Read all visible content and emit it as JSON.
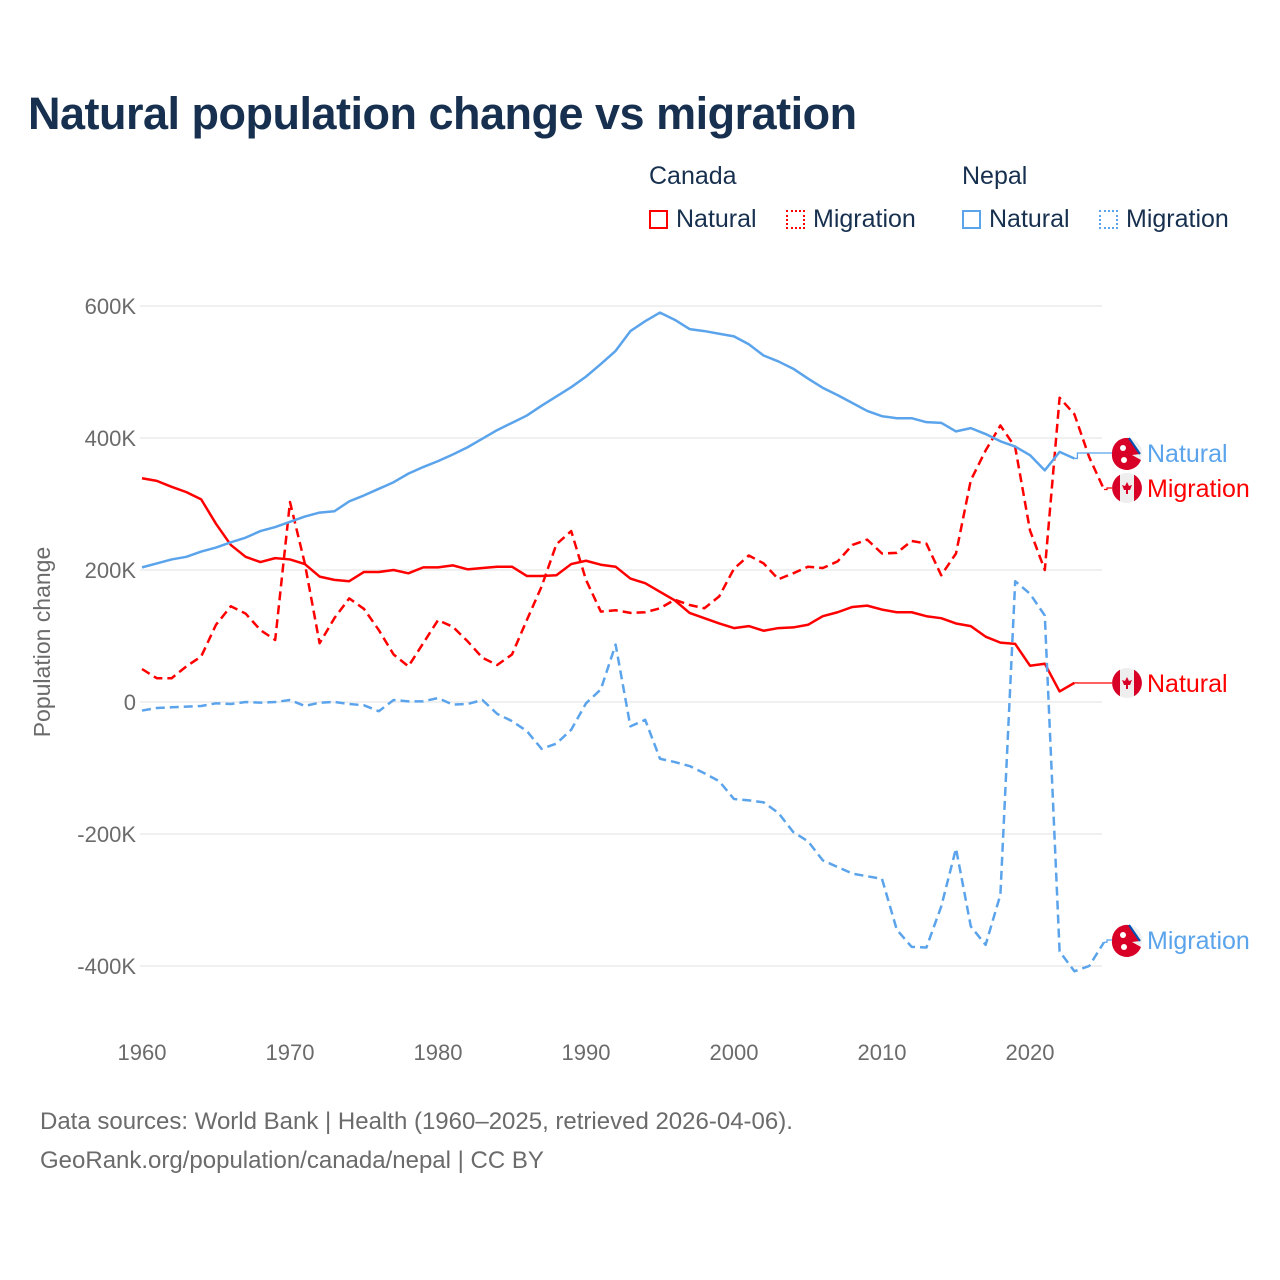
{
  "title": "Natural population change vs migration",
  "legend": {
    "groups": [
      {
        "name": "Canada",
        "items": [
          {
            "label": "Natural",
            "style": "solid"
          },
          {
            "label": "Migration",
            "style": "dotted"
          }
        ],
        "color": "#ff0000"
      },
      {
        "name": "Nepal",
        "items": [
          {
            "label": "Natural",
            "style": "solid"
          },
          {
            "label": "Migration",
            "style": "dotted"
          }
        ],
        "color": "#5ba4ec"
      }
    ]
  },
  "footer": {
    "line1": "Data sources: World Bank | Health (1960–2025, retrieved 2026-04-06).",
    "line2": "GeoRank.org/population/canada/nepal | CC BY"
  },
  "chart_data": {
    "type": "line",
    "title": "Natural population change vs migration",
    "xlabel": "",
    "ylabel": "Population change",
    "xlim": [
      1960,
      2025
    ],
    "ylim": [
      -400000,
      600000
    ],
    "x_ticks": [
      "1960",
      "1970",
      "1980",
      "1990",
      "2000",
      "2010",
      "2020"
    ],
    "y_ticks": [
      {
        "value": 600000,
        "label": "600K"
      },
      {
        "value": 400000,
        "label": "400K"
      },
      {
        "value": 200000,
        "label": "200K"
      },
      {
        "value": 0,
        "label": "0"
      },
      {
        "value": -200000,
        "label": "-200K"
      },
      {
        "value": -400000,
        "label": "-400K"
      }
    ],
    "grid": true,
    "legend_position": "top-right",
    "series": [
      {
        "name": "Canada Natural",
        "country": "Canada",
        "end_label": "Natural",
        "color": "#ff0000",
        "dash": "solid",
        "start": 1960,
        "values": [
          339000,
          335000,
          326000,
          318000,
          307000,
          270000,
          238000,
          220000,
          212000,
          218000,
          216000,
          209000,
          190000,
          185000,
          183000,
          197000,
          197000,
          200000,
          195000,
          204000,
          204000,
          207000,
          201000,
          203000,
          205000,
          205000,
          191000,
          191000,
          192000,
          209000,
          214000,
          208000,
          205000,
          187000,
          180000,
          167000,
          154000,
          135000,
          127000,
          119000,
          112000,
          115000,
          108000,
          112000,
          113000,
          117000,
          130000,
          136000,
          144000,
          146000,
          140000,
          136000,
          136000,
          130000,
          127000,
          119000,
          115000,
          99000,
          90000,
          88000,
          55000,
          58000,
          16000,
          29000
        ]
      },
      {
        "name": "Canada Migration",
        "country": "Canada",
        "end_label": "Migration",
        "color": "#ff0000",
        "dash": "dashed",
        "start": 1960,
        "values": [
          50000,
          36000,
          36000,
          54000,
          69000,
          117000,
          145000,
          134000,
          109000,
          94000,
          303000,
          210000,
          89000,
          127000,
          157000,
          141000,
          109000,
          72000,
          54000,
          89000,
          124000,
          114000,
          92000,
          67000,
          56000,
          72000,
          124000,
          175000,
          239000,
          259000,
          185000,
          137000,
          139000,
          135000,
          136000,
          142000,
          155000,
          147000,
          142000,
          160000,
          202000,
          222000,
          210000,
          186000,
          195000,
          205000,
          203000,
          213000,
          238000,
          246000,
          225000,
          226000,
          244000,
          240000,
          192000,
          225000,
          336000,
          381000,
          419000,
          386000,
          260000,
          200000,
          461000,
          436000,
          371000,
          322000
        ]
      },
      {
        "name": "Nepal Natural",
        "country": "Nepal",
        "end_label": "Natural",
        "color": "#5ba4ec",
        "dash": "solid",
        "start": 1960,
        "values": [
          204000,
          210000,
          216000,
          220000,
          228000,
          234000,
          242000,
          249000,
          259000,
          265000,
          273000,
          281000,
          287000,
          289000,
          304000,
          313000,
          323000,
          333000,
          346000,
          356000,
          365000,
          375000,
          386000,
          399000,
          412000,
          423000,
          434000,
          449000,
          463000,
          477000,
          493000,
          512000,
          532000,
          562000,
          577000,
          590000,
          579000,
          565000,
          562000,
          558000,
          554000,
          542000,
          525000,
          516000,
          505000,
          490000,
          476000,
          465000,
          453000,
          441000,
          433000,
          430000,
          430000,
          424000,
          423000,
          410000,
          415000,
          406000,
          395000,
          387000,
          374000,
          351000,
          379000,
          369000
        ]
      },
      {
        "name": "Nepal Migration",
        "country": "Nepal",
        "end_label": "Migration",
        "color": "#5ba4ec",
        "dash": "dashed",
        "start": 1960,
        "values": [
          -13000,
          -9000,
          -8000,
          -7000,
          -6000,
          -2000,
          -3000,
          0,
          -1000,
          0,
          3000,
          -6000,
          -1000,
          0,
          -3000,
          -5000,
          -14000,
          3000,
          1000,
          1000,
          6000,
          -4000,
          -3000,
          3000,
          -18000,
          -29000,
          -44000,
          -71000,
          -63000,
          -42000,
          -2000,
          19000,
          87000,
          -37000,
          -27000,
          -86000,
          -91000,
          -97000,
          -108000,
          -120000,
          -147000,
          -149000,
          -152000,
          -168000,
          -197000,
          -211000,
          -240000,
          -250000,
          -260000,
          -264000,
          -268000,
          -345000,
          -371000,
          -372000,
          -310000,
          -222000,
          -340000,
          -368000,
          -292000,
          183000,
          164000,
          131000,
          -378000,
          -408000,
          -400000,
          -364000
        ]
      }
    ]
  }
}
